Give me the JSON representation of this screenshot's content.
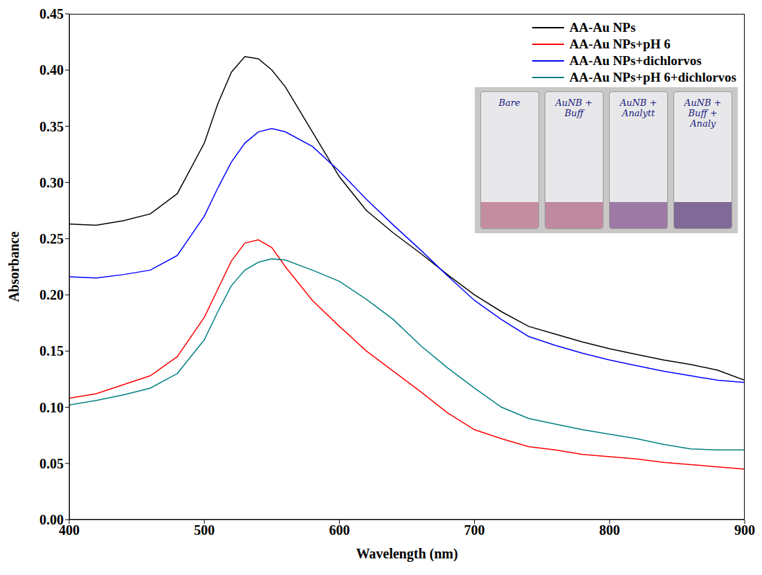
{
  "chart_data": {
    "type": "line",
    "x_label": "Wavelength (nm)",
    "y_label": "Absorbance",
    "x": [
      400,
      420,
      440,
      460,
      480,
      500,
      510,
      520,
      530,
      540,
      550,
      560,
      580,
      600,
      620,
      640,
      660,
      680,
      700,
      720,
      740,
      760,
      780,
      800,
      820,
      840,
      860,
      880,
      900
    ],
    "series": [
      {
        "name": "AA-Au NPs",
        "color": "#000000",
        "values": [
          0.263,
          0.262,
          0.266,
          0.272,
          0.29,
          0.335,
          0.37,
          0.398,
          0.412,
          0.41,
          0.4,
          0.385,
          0.345,
          0.305,
          0.275,
          0.255,
          0.237,
          0.218,
          0.2,
          0.185,
          0.172,
          0.165,
          0.158,
          0.152,
          0.147,
          0.142,
          0.138,
          0.133,
          0.124
        ]
      },
      {
        "name": "AA-Au NPs+pH 6",
        "color": "#ff0000",
        "values": [
          0.108,
          0.112,
          0.12,
          0.128,
          0.145,
          0.18,
          0.205,
          0.23,
          0.246,
          0.249,
          0.242,
          0.225,
          0.195,
          0.172,
          0.15,
          0.132,
          0.114,
          0.095,
          0.08,
          0.072,
          0.065,
          0.062,
          0.058,
          0.056,
          0.054,
          0.051,
          0.049,
          0.047,
          0.045
        ]
      },
      {
        "name": "AA-Au NPs+dichlorvos",
        "color": "#0000ff",
        "values": [
          0.216,
          0.215,
          0.218,
          0.222,
          0.235,
          0.27,
          0.295,
          0.318,
          0.335,
          0.345,
          0.348,
          0.345,
          0.332,
          0.31,
          0.285,
          0.262,
          0.24,
          0.217,
          0.195,
          0.178,
          0.163,
          0.155,
          0.148,
          0.142,
          0.137,
          0.132,
          0.128,
          0.124,
          0.122
        ]
      },
      {
        "name": "AA-Au NPs+pH 6+dichlorvos",
        "color": "#008080",
        "values": [
          0.102,
          0.106,
          0.111,
          0.117,
          0.13,
          0.16,
          0.185,
          0.208,
          0.222,
          0.229,
          0.232,
          0.231,
          0.222,
          0.212,
          0.196,
          0.178,
          0.155,
          0.135,
          0.117,
          0.1,
          0.09,
          0.085,
          0.08,
          0.076,
          0.072,
          0.067,
          0.063,
          0.062,
          0.062
        ]
      }
    ],
    "xlim": [
      400,
      900
    ],
    "xticks": [
      400,
      500,
      600,
      700,
      800,
      900
    ],
    "ylim": [
      0,
      0.45
    ],
    "yticks": [
      {
        "value": 0,
        "label": "0.00"
      },
      {
        "value": 0.05,
        "label": "0.05"
      },
      {
        "value": 0.1,
        "label": "0.10"
      },
      {
        "value": 0.15,
        "label": "0.15"
      },
      {
        "value": 0.2,
        "label": "0.20"
      },
      {
        "value": 0.25,
        "label": "0.25"
      },
      {
        "value": 0.3,
        "label": "0.30"
      },
      {
        "value": 0.35,
        "label": "0.35"
      },
      {
        "value": 0.4,
        "label": "0.40"
      },
      {
        "value": 0.45,
        "label": "0.45"
      }
    ],
    "legend": "upper right",
    "grid": false,
    "annotations": [
      "Bare",
      "AuNB + Buff",
      "AuNB + Analytt",
      "AuNB + Buff + Analy"
    ]
  }
}
